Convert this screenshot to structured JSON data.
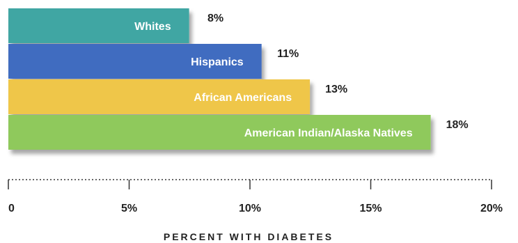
{
  "chart_data": {
    "type": "bar",
    "orientation": "horizontal",
    "title": "",
    "xlabel": "PERCENT WITH DIABETES",
    "ylabel": "",
    "xlim": [
      0,
      20
    ],
    "x_ticks": [
      0,
      5,
      10,
      15,
      20
    ],
    "x_tick_labels": [
      "0",
      "5%",
      "10%",
      "15%",
      "20%"
    ],
    "grid": false,
    "categories": [
      "Whites",
      "Hispanics",
      "African Americans",
      "American Indian/Alaska Natives"
    ],
    "values": [
      8,
      11,
      13,
      18
    ],
    "value_labels": [
      "8%",
      "11%",
      "13%",
      "18%"
    ],
    "colors": [
      "#3fa6a3",
      "#3f6cc0",
      "#efc64a",
      "#8fc95c"
    ],
    "axis_style": "dotted"
  }
}
